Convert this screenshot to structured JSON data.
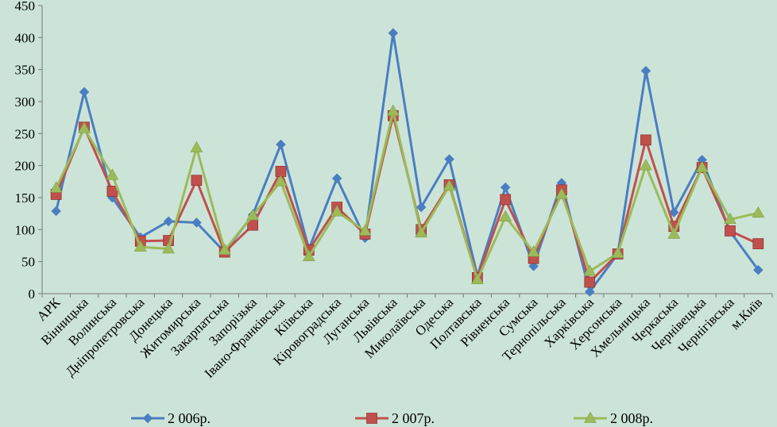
{
  "chart_data": {
    "type": "line",
    "title": "",
    "xlabel": "",
    "ylabel": "",
    "ylim": [
      0,
      450
    ],
    "yticks": [
      0,
      50,
      100,
      150,
      200,
      250,
      300,
      350,
      400,
      450
    ],
    "grid": false,
    "legend_position": "bottom",
    "categories": [
      "АРК",
      "Вінницька",
      "Волинська",
      "Дніпропетровська",
      "Донецька",
      "Житомирська",
      "Закарпатська",
      "Запорізька",
      "Івано-Франківська",
      "Кіївська",
      "Кіровоградська",
      "Луганська",
      "Львівська",
      "Миколаївська",
      "Одеська",
      "Полтавська",
      "Рівненська",
      "Сумська",
      "Тернопільська",
      "Харківська",
      "Херсонська",
      "Хмельницька",
      "Черкаська",
      "Чернівецька",
      "Чернігівська",
      "м.Київ"
    ],
    "series": [
      {
        "name": "2 006р.",
        "color": "#4a7ec1",
        "marker": "diamond",
        "values": [
          129,
          315,
          150,
          88,
          113,
          111,
          65,
          123,
          233,
          70,
          180,
          87,
          407,
          135,
          210,
          28,
          166,
          43,
          173,
          3,
          62,
          348,
          127,
          209,
          97,
          37
        ]
      },
      {
        "name": "2 007р.",
        "color": "#c0504d",
        "marker": "square",
        "values": [
          155,
          260,
          160,
          82,
          83,
          177,
          65,
          107,
          191,
          68,
          135,
          93,
          278,
          100,
          170,
          25,
          147,
          55,
          162,
          18,
          62,
          240,
          105,
          197,
          98,
          78
        ]
      },
      {
        "name": "2 008р.",
        "color": "#9bbb59",
        "marker": "triangle",
        "values": [
          165,
          258,
          185,
          73,
          70,
          228,
          68,
          122,
          175,
          58,
          128,
          98,
          285,
          95,
          168,
          22,
          120,
          65,
          155,
          35,
          63,
          200,
          93,
          197,
          116,
          126
        ]
      }
    ]
  }
}
